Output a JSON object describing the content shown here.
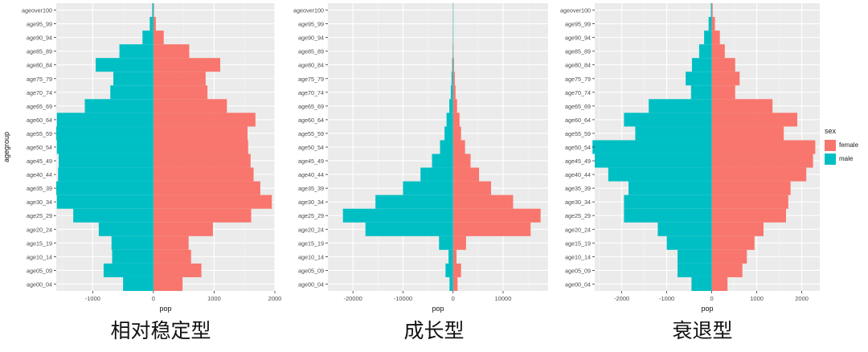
{
  "age_groups": [
    "age00_04",
    "age05_09",
    "age10_14",
    "age15_19",
    "age20_24",
    "age25_29",
    "age30_34",
    "age35_39",
    "age40_44",
    "age45_49",
    "age50_54",
    "age55_59",
    "age60_64",
    "age65_69",
    "age70_74",
    "age75_79",
    "age80_84",
    "age85_89",
    "age90_94",
    "age95_99",
    "ageover100"
  ],
  "legend": {
    "title": "sex",
    "items": [
      {
        "label": "female",
        "color": "#F8766D"
      },
      {
        "label": "male",
        "color": "#00BFC4"
      }
    ]
  },
  "colors": {
    "female": "#F8766D",
    "male": "#00BFC4",
    "panel": "#EBEBEB",
    "grid": "#FFFFFF"
  },
  "chart_data": [
    {
      "type": "bar",
      "orientation": "horizontal",
      "caption": "相对稳定型",
      "xlabel": "pop",
      "ylabel": "agegroup",
      "xlim": [
        -1600,
        2000
      ],
      "xticks": [
        -1000,
        0,
        1000,
        2000
      ],
      "xtick_labels": [
        "-1000",
        "0",
        "1000",
        "2000"
      ],
      "grid": true,
      "series": [
        {
          "name": "female",
          "values": [
            480,
            790,
            620,
            580,
            980,
            1610,
            1950,
            1760,
            1650,
            1600,
            1560,
            1550,
            1680,
            1210,
            890,
            860,
            1100,
            590,
            170,
            40,
            10
          ]
        },
        {
          "name": "male",
          "values": [
            -500,
            -820,
            -680,
            -690,
            -900,
            -1320,
            -1590,
            -1600,
            -1570,
            -1560,
            -1590,
            -1600,
            -1590,
            -1130,
            -710,
            -660,
            -950,
            -560,
            -180,
            -60,
            -20
          ]
        }
      ]
    },
    {
      "type": "bar",
      "orientation": "horizontal",
      "caption": "成长型",
      "xlabel": "pop",
      "ylabel": "",
      "xlim": [
        -25000,
        19000
      ],
      "xticks": [
        -20000,
        -10000,
        0,
        10000
      ],
      "xtick_labels": [
        "-20000",
        "-10000",
        "0",
        "10000"
      ],
      "grid": true,
      "series": [
        {
          "name": "female",
          "values": [
            900,
            1600,
            700,
            2600,
            15500,
            17500,
            12000,
            7600,
            5200,
            3500,
            2400,
            1600,
            1300,
            800,
            500,
            350,
            200,
            100,
            50,
            20,
            10
          ]
        },
        {
          "name": "male",
          "values": [
            -700,
            -1500,
            -900,
            -2800,
            -17500,
            -22000,
            -15500,
            -10000,
            -6500,
            -4200,
            -2600,
            -1700,
            -1300,
            -750,
            -450,
            -300,
            -180,
            -90,
            -40,
            -20,
            -10
          ]
        }
      ]
    },
    {
      "type": "bar",
      "orientation": "horizontal",
      "caption": "衰退型",
      "xlabel": "pop",
      "ylabel": "",
      "xlim": [
        -2600,
        2400
      ],
      "xticks": [
        -2000,
        -1000,
        0,
        1000,
        2000
      ],
      "xtick_labels": [
        "-2000",
        "-1000",
        "0",
        "1000",
        "2000"
      ],
      "grid": true,
      "series": [
        {
          "name": "female",
          "values": [
            350,
            680,
            780,
            950,
            1150,
            1650,
            1700,
            1750,
            2100,
            2250,
            2300,
            1600,
            1900,
            1350,
            520,
            620,
            520,
            290,
            180,
            70,
            20
          ]
        },
        {
          "name": "male",
          "values": [
            -450,
            -760,
            -760,
            -1000,
            -1200,
            -1950,
            -1950,
            -1850,
            -2300,
            -2600,
            -2650,
            -1700,
            -1950,
            -1400,
            -460,
            -580,
            -440,
            -280,
            -170,
            -70,
            -20
          ]
        }
      ]
    }
  ]
}
